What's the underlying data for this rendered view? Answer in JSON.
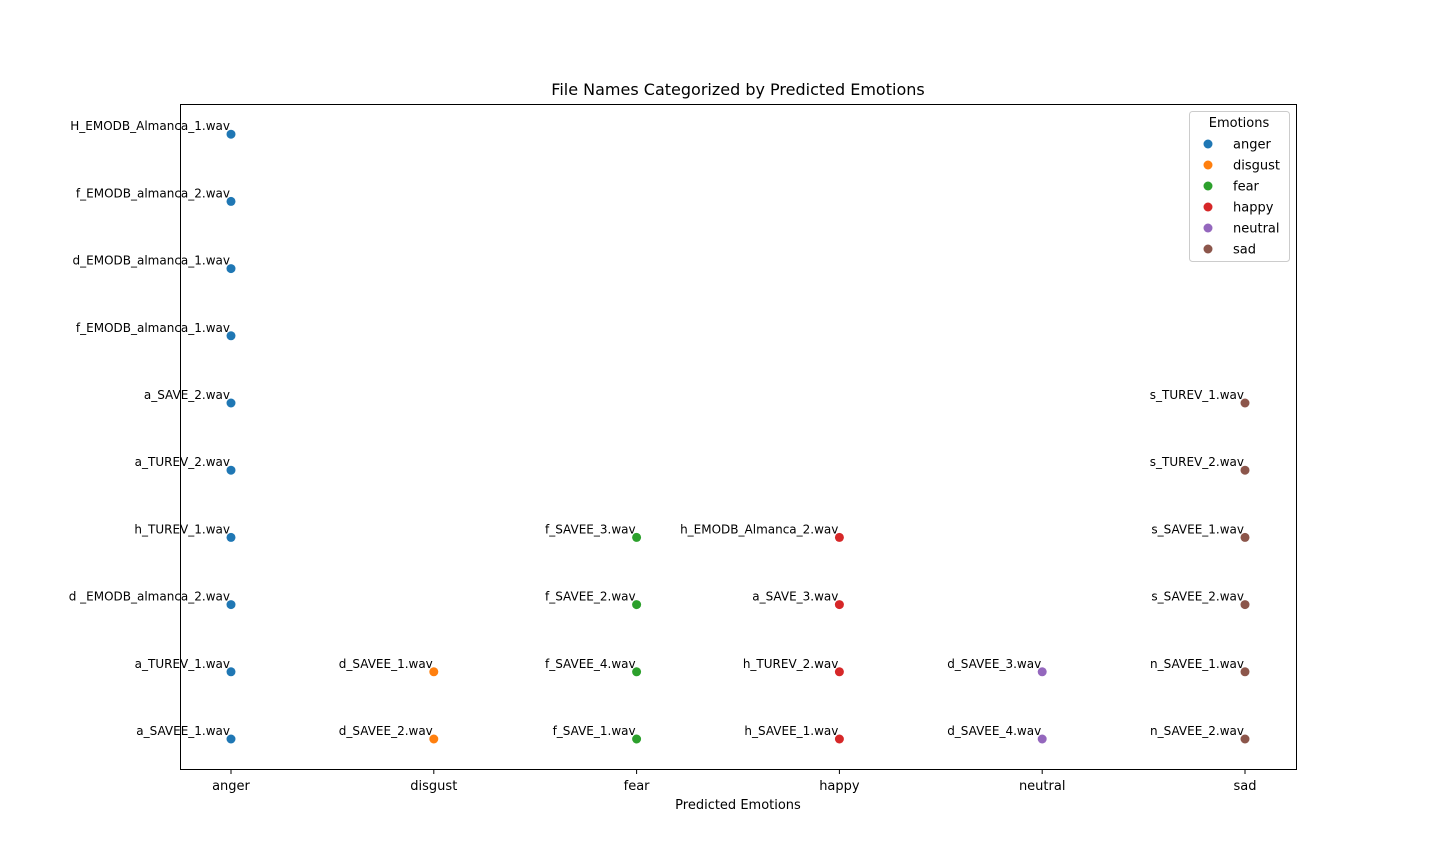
{
  "chart_data": {
    "type": "scatter",
    "title": "File Names Categorized by Predicted Emotions",
    "xlabel": "Predicted Emotions",
    "ylabel": "",
    "categories": [
      "anger",
      "disgust",
      "fear",
      "happy",
      "neutral",
      "sad"
    ],
    "y_ticks_visible": false,
    "grid": false,
    "legend": {
      "title": "Emotions",
      "placement": "top-right"
    },
    "series": [
      {
        "name": "anger",
        "color": "#1f77b4",
        "points": [
          {
            "label": "H_EMODB_Almanca_1.wav",
            "y": 9
          },
          {
            "label": "f_EMODB_almanca_2.wav",
            "y": 8
          },
          {
            "label": "d_EMODB_almanca_1.wav",
            "y": 7
          },
          {
            "label": "f_EMODB_almanca_1.wav",
            "y": 6
          },
          {
            "label": "a_SAVE_2.wav",
            "y": 5
          },
          {
            "label": "a_TUREV_2.wav",
            "y": 4
          },
          {
            "label": "h_TUREV_1.wav",
            "y": 3
          },
          {
            "label": "d _EMODB_almanca_2.wav",
            "y": 2
          },
          {
            "label": "a_TUREV_1.wav",
            "y": 1
          },
          {
            "label": "a_SAVEE_1.wav",
            "y": 0
          }
        ]
      },
      {
        "name": "disgust",
        "color": "#ff7f0e",
        "points": [
          {
            "label": "d_SAVEE_1.wav",
            "y": 1
          },
          {
            "label": "d_SAVEE_2.wav",
            "y": 0
          }
        ]
      },
      {
        "name": "fear",
        "color": "#2ca02c",
        "points": [
          {
            "label": "f_SAVEE_3.wav",
            "y": 3
          },
          {
            "label": "f_SAVEE_2.wav",
            "y": 2
          },
          {
            "label": "f_SAVEE_4.wav",
            "y": 1
          },
          {
            "label": "f_SAVE_1.wav",
            "y": 0
          }
        ]
      },
      {
        "name": "happy",
        "color": "#d62728",
        "points": [
          {
            "label": "h_EMODB_Almanca_2.wav",
            "y": 3
          },
          {
            "label": "a_SAVE_3.wav",
            "y": 2
          },
          {
            "label": "h_TUREV_2.wav",
            "y": 1
          },
          {
            "label": "h_SAVEE_1.wav",
            "y": 0
          }
        ]
      },
      {
        "name": "neutral",
        "color": "#9467bd",
        "points": [
          {
            "label": "d_SAVEE_3.wav",
            "y": 1
          },
          {
            "label": "d_SAVEE_4.wav",
            "y": 0
          }
        ]
      },
      {
        "name": "sad",
        "color": "#8c564b",
        "points": [
          {
            "label": "s_TUREV_1.wav",
            "y": 5
          },
          {
            "label": "s_TUREV_2.wav",
            "y": 4
          },
          {
            "label": "s_SAVEE_1.wav",
            "y": 3
          },
          {
            "label": "s_SAVEE_2.wav",
            "y": 2
          },
          {
            "label": "n_SAVEE_1.wav",
            "y": 1
          },
          {
            "label": "n_SAVEE_2.wav",
            "y": 0
          }
        ]
      }
    ]
  }
}
